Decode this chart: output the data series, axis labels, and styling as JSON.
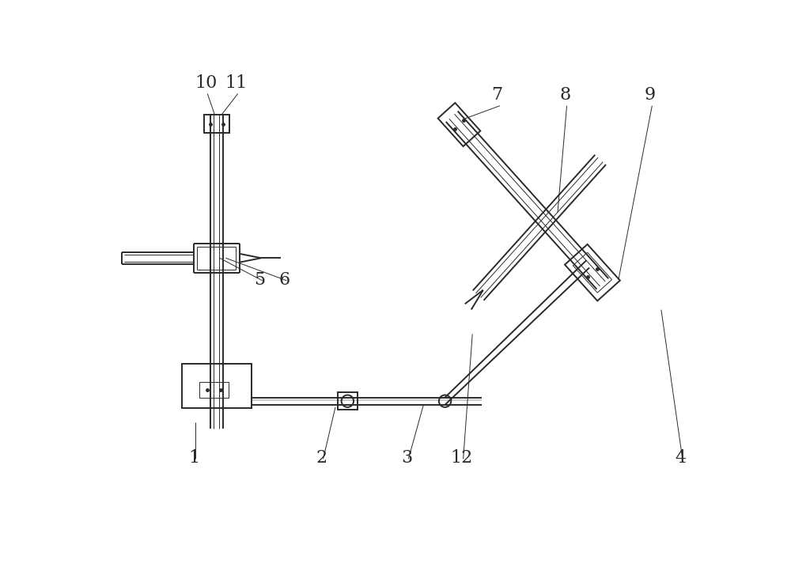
{
  "bg_color": "#ffffff",
  "line_color": "#2a2a2a",
  "line_width": 1.4,
  "thin_line": 0.7,
  "label_fontsize": 16
}
